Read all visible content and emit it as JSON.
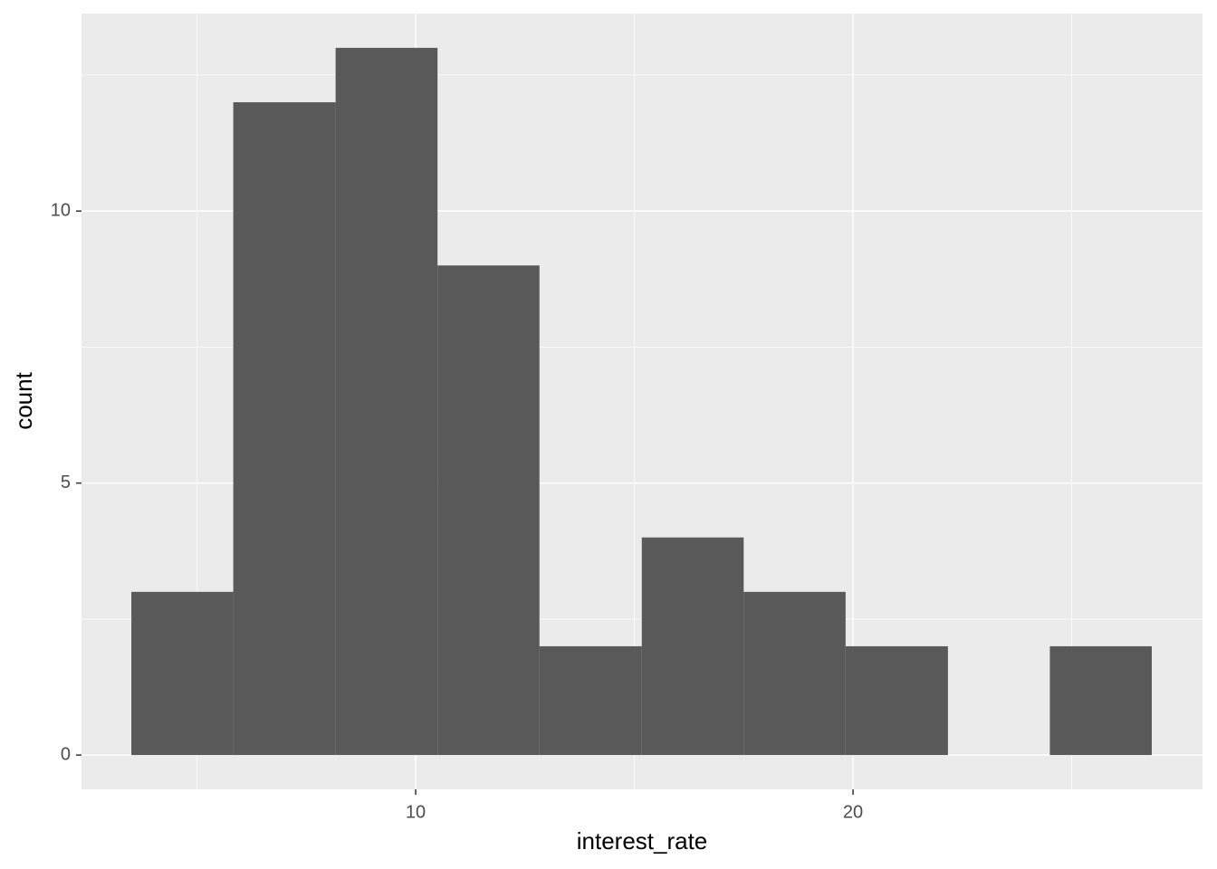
{
  "chart_data": {
    "type": "histogram",
    "x_label": "interest_rate",
    "y_label": "count",
    "bins": [
      3.5,
      5.83,
      8.17,
      10.5,
      12.83,
      15.17,
      17.5,
      19.83,
      22.17,
      24.5,
      26.83
    ],
    "values": [
      3,
      12,
      13,
      9,
      2,
      4,
      3,
      2,
      0,
      2
    ],
    "color": "#595959",
    "xlim": [
      2.36,
      27.99
    ],
    "ylim": [
      -0.63,
      13.63
    ],
    "xticks": [
      10,
      20
    ],
    "yticks": [
      0,
      5,
      10
    ],
    "grid": true
  }
}
